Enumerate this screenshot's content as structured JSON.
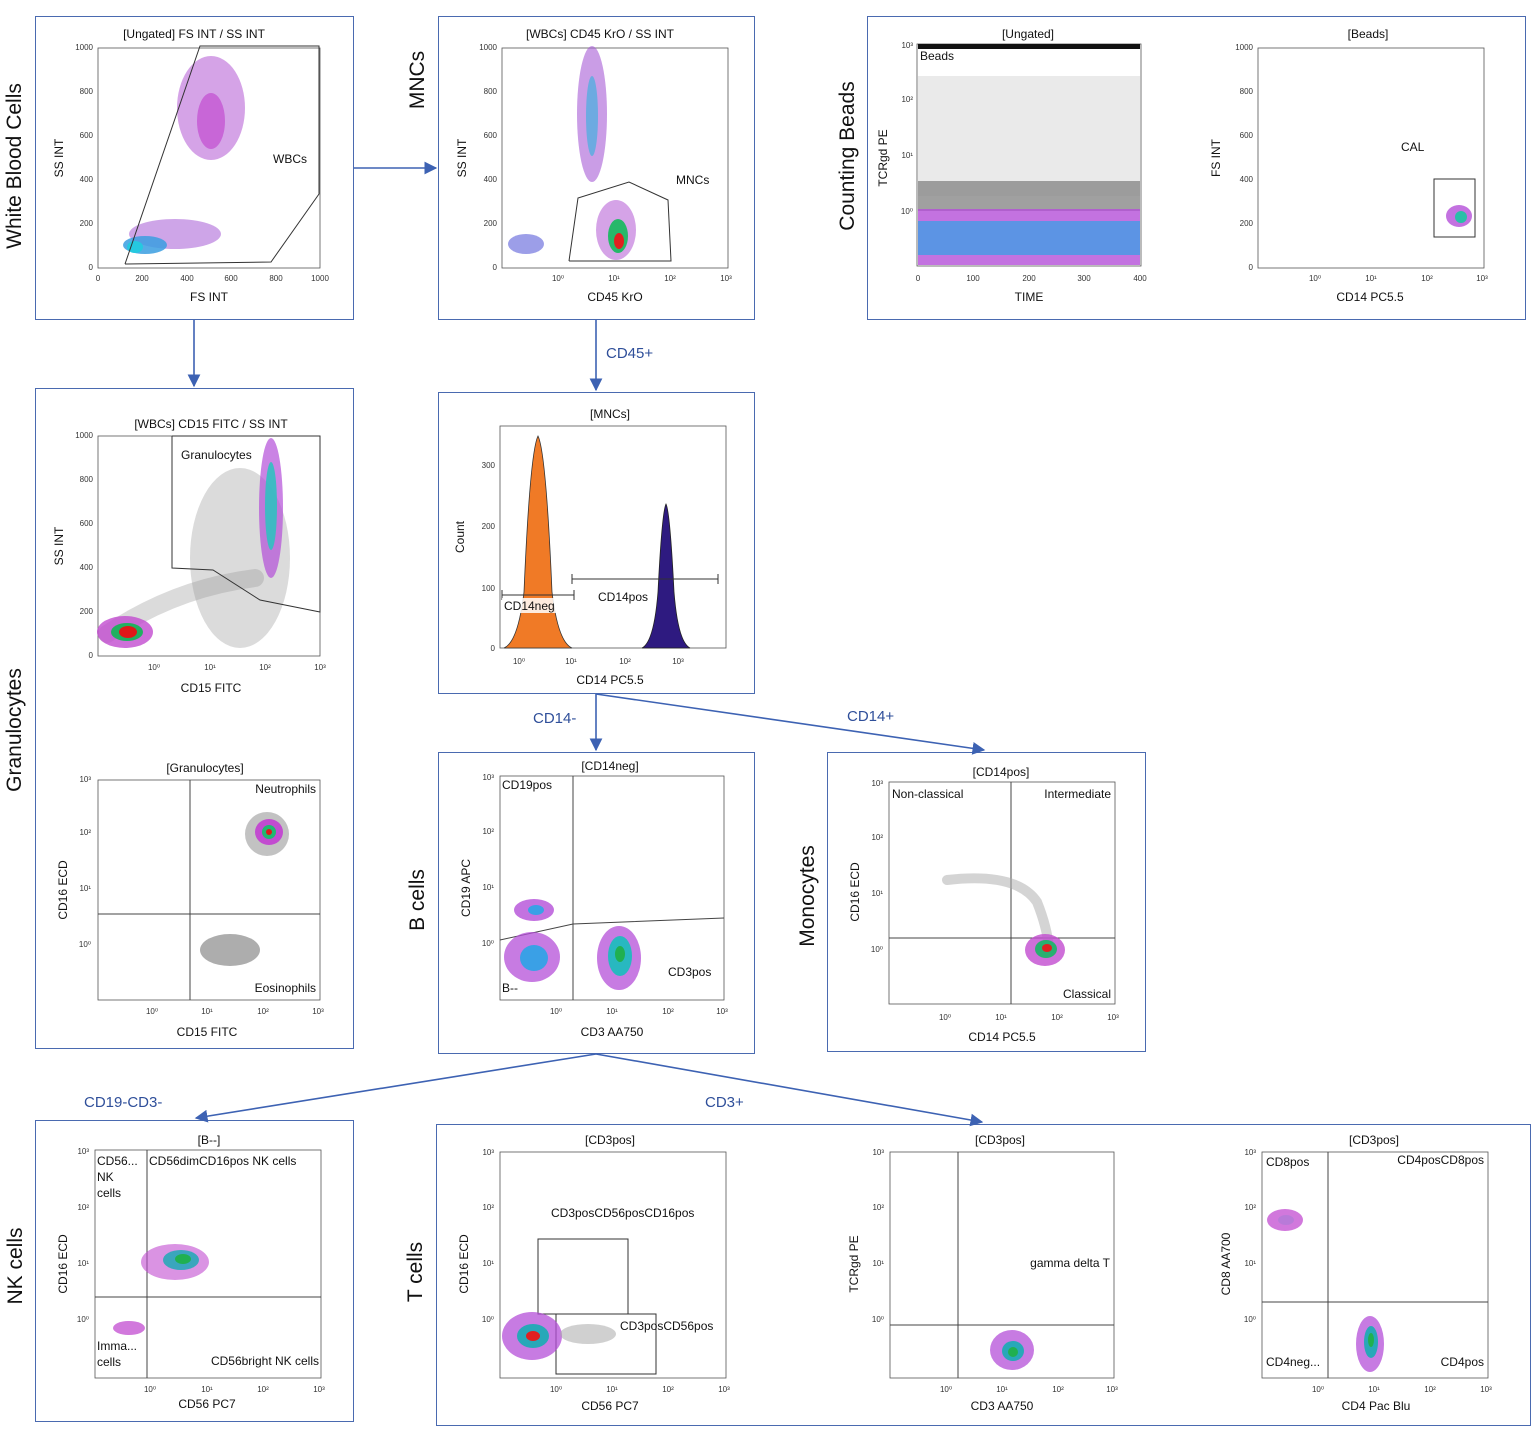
{
  "sections": {
    "wbc": "White Blood Cells",
    "mnc": "MNCs",
    "beads": "Counting Beads",
    "gran": "Granulocytes",
    "bcell": "B cells",
    "mono": "Monocytes",
    "nk": "NK cells",
    "tcell": "T cells"
  },
  "edges": {
    "cd45": "CD45+",
    "cd14neg": "CD14-",
    "cd14pos": "CD14+",
    "cd19cd3": "CD19-CD3-",
    "cd3": "CD3+"
  },
  "ticks": {
    "lin": [
      "0",
      "200",
      "400",
      "600",
      "800",
      "1000"
    ],
    "lin_time": [
      "0",
      "100",
      "200",
      "300",
      "400"
    ],
    "log": [
      "10⁰",
      "10¹",
      "10²",
      "10³"
    ],
    "count": [
      "0",
      "100",
      "200",
      "300"
    ]
  },
  "plots": {
    "p1": {
      "title": "[Ungated] FS INT / SS INT",
      "xlabel": "FS INT",
      "ylabel": "SS INT",
      "gates": [
        "WBCs"
      ]
    },
    "p2": {
      "title": "[WBCs] CD45 KrO / SS INT",
      "xlabel": "CD45 KrO",
      "ylabel": "SS INT",
      "gates": [
        "MNCs"
      ]
    },
    "p3": {
      "title": "[Ungated]",
      "xlabel": "TIME",
      "ylabel": "TCRgd PE",
      "gates": [
        "Beads"
      ]
    },
    "p4": {
      "title": "[Beads]",
      "xlabel": "CD14 PC5.5",
      "ylabel": "FS INT",
      "gates": [
        "CAL"
      ]
    },
    "p5": {
      "title": "[WBCs] CD15 FITC / SS INT",
      "xlabel": "CD15 FITC",
      "ylabel": "SS INT",
      "gates": [
        "Granulocytes"
      ]
    },
    "p6": {
      "title": "[MNCs]",
      "xlabel": "CD14 PC5.5",
      "ylabel": "Count",
      "gates": [
        "CD14neg",
        "CD14pos"
      ]
    },
    "p7": {
      "title": "[Granulocytes]",
      "xlabel": "CD15 FITC",
      "ylabel": "CD16 ECD",
      "gates": [
        "Neutrophils",
        "Eosinophils"
      ]
    },
    "p8": {
      "title": "[CD14neg]",
      "xlabel": "CD3 AA750",
      "ylabel": "CD19 APC",
      "gates": [
        "CD19pos",
        "CD3pos",
        "B--"
      ]
    },
    "p9": {
      "title": "[CD14pos]",
      "xlabel": "CD14 PC5.5",
      "ylabel": "CD16 ECD",
      "gates": [
        "Non-classical",
        "Intermediate",
        "Classical"
      ]
    },
    "p10": {
      "title": "[B--]",
      "xlabel": "CD56 PC7",
      "ylabel": "CD16 ECD",
      "gates": [
        "CD56...",
        "NK",
        "cells",
        "CD56dimCD16pos NK cells",
        "Imma...",
        "cells",
        "CD56bright NK cells"
      ]
    },
    "p11": {
      "title": "[CD3pos]",
      "xlabel": "CD56 PC7",
      "ylabel": "CD16 ECD",
      "gates": [
        "CD3posCD56posCD16pos",
        "CD3posCD56pos"
      ]
    },
    "p12": {
      "title": "[CD3pos]",
      "xlabel": "CD3 AA750",
      "ylabel": "TCRgd PE",
      "gates": [
        "gamma delta T"
      ]
    },
    "p13": {
      "title": "[CD3pos]",
      "xlabel": "CD4 Pac Blu",
      "ylabel": "CD8 AA700",
      "gates": [
        "CD8pos",
        "CD4posCD8pos",
        "CD4neg...",
        "CD4pos"
      ]
    }
  },
  "colors": {
    "box_border": "#4a6ab0",
    "arrow": "#3d62b3",
    "cd14neg_hist": "#f07a26",
    "cd14pos_hist": "#2e1a80"
  }
}
